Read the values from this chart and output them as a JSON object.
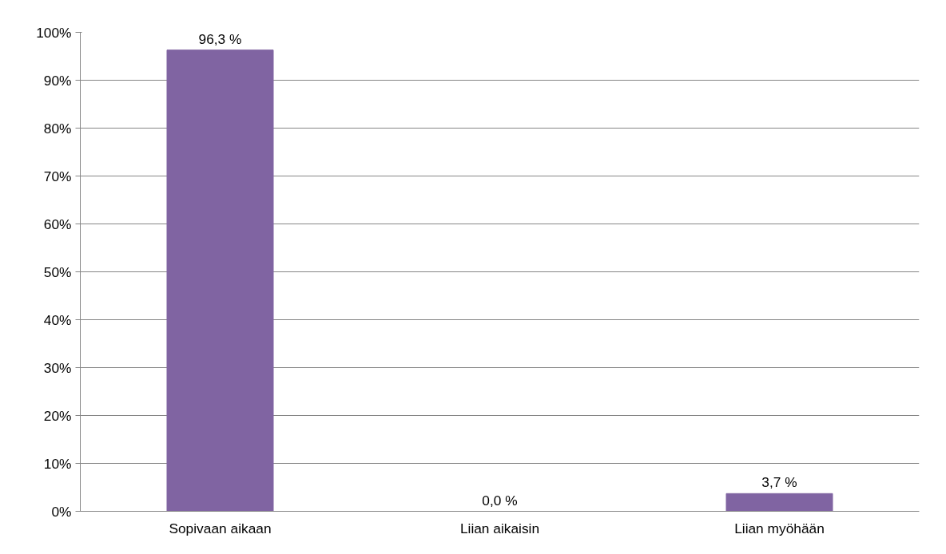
{
  "chart_data": {
    "type": "bar",
    "categories": [
      "Sopivaan aikaan",
      "Liian aikaisin",
      "Liian myöhään"
    ],
    "values": [
      96.3,
      0.0,
      3.7
    ],
    "value_labels": [
      "96,3 %",
      "0,0 %",
      "3,7 %"
    ],
    "color": "#8064a2",
    "ylim": [
      0,
      100
    ],
    "yticks": [
      {
        "value": 0,
        "label": "0%"
      },
      {
        "value": 10,
        "label": "10%"
      },
      {
        "value": 20,
        "label": "20%"
      },
      {
        "value": 30,
        "label": "30%"
      },
      {
        "value": 40,
        "label": "40%"
      },
      {
        "value": 50,
        "label": "50%"
      },
      {
        "value": 60,
        "label": "60%"
      },
      {
        "value": 70,
        "label": "70%"
      },
      {
        "value": 80,
        "label": "80%"
      },
      {
        "value": 90,
        "label": "90%"
      },
      {
        "value": 100,
        "label": "100%"
      }
    ],
    "grid": "y"
  }
}
